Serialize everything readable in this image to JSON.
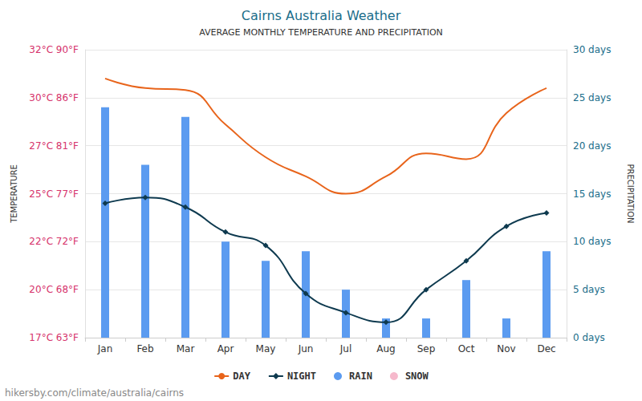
{
  "chart_data": {
    "type": "line",
    "title": "Cairns Australia Weather",
    "subtitle": "AVERAGE MONTHLY TEMPERATURE AND PRECIPITATION",
    "y_label": "TEMPERATURE",
    "y2_label": "PRECIPITATION",
    "annotations": [
      "hikersby.com/climate/australia/cairns"
    ],
    "categories": [
      "Jan",
      "Feb",
      "Mar",
      "Apr",
      "May",
      "Jun",
      "Jul",
      "Aug",
      "Sep",
      "Oct",
      "Nov",
      "Dec"
    ],
    "series": [
      {
        "name": "DAY",
        "type": "line",
        "color": "#e8641b",
        "marker": "none",
        "line_style": "solid",
        "values": [
          30.7,
          30.2,
          30.1,
          28.3,
          26.6,
          25.6,
          24.7,
          25.6,
          26.8,
          26.5,
          28.9,
          30.2
        ]
      },
      {
        "name": "NIGHT",
        "type": "line",
        "color": "#0e3a4f",
        "marker": "diamond",
        "line_style": "solid",
        "values": [
          24.2,
          24.5,
          24.0,
          22.7,
          22.0,
          19.5,
          18.5,
          18.0,
          19.7,
          21.2,
          23.0,
          23.7
        ]
      },
      {
        "name": "RAIN",
        "type": "bar",
        "axis": "y2",
        "color": "#5b9bf0",
        "values": [
          24,
          18,
          23,
          10,
          8,
          9,
          5,
          2,
          2,
          6,
          2,
          9
        ]
      },
      {
        "name": "SNOW",
        "type": "bar",
        "axis": "y2",
        "color": "#f6b9cc",
        "values": [
          0,
          0,
          0,
          0,
          0,
          0,
          0,
          0,
          0,
          0,
          0,
          0
        ]
      }
    ],
    "ylim": [
      17.2,
      32.2
    ],
    "yticks": [
      {
        "value": 17.2,
        "label": "17°C 63°F"
      },
      {
        "value": 19.7,
        "label": "20°C 68°F"
      },
      {
        "value": 22.2,
        "label": "22°C 72°F"
      },
      {
        "value": 24.7,
        "label": "25°C 77°F"
      },
      {
        "value": 27.2,
        "label": "27°C 81°F"
      },
      {
        "value": 29.7,
        "label": "30°C 86°F"
      },
      {
        "value": 32.2,
        "label": "32°C 90°F"
      }
    ],
    "y2lim": [
      0,
      30
    ],
    "y2ticks": [
      {
        "value": 0,
        "label": "0 days"
      },
      {
        "value": 5,
        "label": "5 days"
      },
      {
        "value": 10,
        "label": "10 days"
      },
      {
        "value": 15,
        "label": "15 days"
      },
      {
        "value": 20,
        "label": "20 days"
      },
      {
        "value": 25,
        "label": "25 days"
      },
      {
        "value": 30,
        "label": "30 days"
      }
    ],
    "grid": true,
    "legend": "bottom"
  }
}
